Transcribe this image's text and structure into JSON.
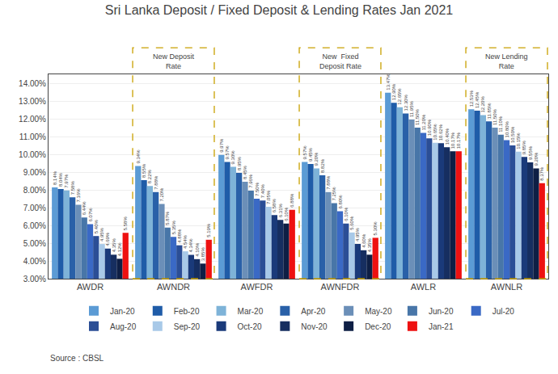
{
  "chart_data": {
    "type": "bar",
    "title": "Sri Lanka Deposit / Fixed Deposit & Lending Rates Jan 2021",
    "source": "Source : CBSL",
    "categories": [
      "AWDR",
      "AWNDR",
      "AWFDR",
      "AWNFDR",
      "AWLR",
      "AWNLR"
    ],
    "series": [
      {
        "name": "Jan-20",
        "color": "#5B9BD5",
        "values": [
          8.14,
          9.34,
          9.97,
          9.57,
          13.47,
          12.53
        ],
        "value_labels": [
          "8.14%",
          "9.34%",
          "9.97%",
          "9.57%",
          "13.47%",
          "12.53%"
        ]
      },
      {
        "name": "Feb-20",
        "color": "#1F5CA8",
        "values": [
          8.04,
          8.55,
          9.57,
          9.45,
          12.9,
          12.45
        ],
        "value_labels": [
          "8.04%",
          "8.55%",
          "9.57%",
          "9.45%",
          "12.90%",
          "12.45%"
        ]
      },
      {
        "name": "Mar-20",
        "color": "#7EB3D8",
        "values": [
          7.97,
          8.22,
          9.3,
          9.2,
          12.65,
          12.2
        ],
        "value_labels": [
          "7.97%",
          "8.22%",
          "9.30%",
          "9.20%",
          "12.65%",
          "12.20%"
        ]
      },
      {
        "name": "Apr-20",
        "color": "#2960A8",
        "values": [
          7.58,
          7.88,
          8.95,
          8.82,
          12.3,
          11.85
        ],
        "value_labels": [
          "7.58%",
          "7.88%",
          "8.95%",
          "8.82%",
          "12.30%",
          "11.85%"
        ]
      },
      {
        "name": "May-20",
        "color": "#6B8FB8",
        "values": [
          7.16,
          7.2,
          8.45,
          7.88,
          11.95,
          11.5
        ],
        "value_labels": [
          "7.16%",
          "7.20%",
          "8.45%",
          "7.88%",
          "11.95%",
          "11.50%"
        ]
      },
      {
        "name": "Jun-20",
        "color": "#4876A8",
        "values": [
          6.44,
          5.87,
          7.96,
          7.25,
          11.5,
          11.1
        ],
        "value_labels": [
          "6.44%",
          "5.87%",
          "7.96%",
          "7.25%",
          "11.50%",
          "11.10%"
        ]
      },
      {
        "name": "Jul-20",
        "color": "#3A69C5",
        "values": [
          6.07,
          5.35,
          7.5,
          6.8,
          11.2,
          10.8
        ],
        "value_labels": [
          "6.07%",
          "5.35%",
          "7.50%",
          "6.80%",
          "11.20%",
          "10.80%"
        ]
      },
      {
        "name": "Aug-20",
        "color": "#2B4E96",
        "values": [
          5.4,
          4.88,
          7.4,
          6.1,
          10.9,
          10.5
        ],
        "value_labels": [
          "5.40%",
          "4.88%",
          "7.40%",
          "6.10%",
          "10.90%",
          "10.50%"
        ]
      },
      {
        "name": "Sep-20",
        "color": "#A8C9E8",
        "values": [
          4.95,
          4.54,
          7.05,
          5.6,
          10.65,
          10.15
        ],
        "value_labels": [
          "4.95%",
          "4.54%",
          "7.05%",
          "5.60%",
          "10.65%",
          "10.15%"
        ]
      },
      {
        "name": "Oct-20",
        "color": "#1A3A7A",
        "values": [
          4.69,
          4.34,
          6.58,
          4.95,
          10.62,
          9.85
        ],
        "value_labels": [
          "4.69%",
          "4.34%",
          "6.58%",
          "4.95%",
          "10.62%",
          "9.85%"
        ]
      },
      {
        "name": "Nov-20",
        "color": "#162E60",
        "values": [
          4.35,
          4.1,
          6.31,
          4.6,
          10.4,
          9.55
        ],
        "value_labels": [
          "4.35%",
          "4.10%",
          "6.31%",
          "4.60%",
          "10.40%",
          "9.55%"
        ]
      },
      {
        "name": "Dec-20",
        "color": "#0E1F45",
        "values": [
          4.12,
          3.85,
          6.1,
          4.35,
          10.17,
          9.2
        ],
        "value_labels": [
          "4.12%",
          "3.85%",
          "6.10%",
          "4.35%",
          "10.17%",
          "9.20%"
        ]
      },
      {
        "name": "Jan-21",
        "color": "#EE1111",
        "values": [
          5.58,
          5.19,
          6.88,
          5.3,
          10.17,
          8.37
        ],
        "value_labels": [
          "5.58%",
          "5.19%",
          "6.88%",
          "5.30%",
          "10.17%",
          "8.37%"
        ]
      }
    ],
    "annotations": [
      {
        "category": "AWNDR",
        "text": "New Deposit\nRate"
      },
      {
        "category": "AWNFDR",
        "text": "New  Fixed\nDeposit Rate"
      },
      {
        "category": "AWNLR",
        "text": "New Lending\nRate"
      }
    ],
    "ylim": [
      3.0,
      14.5
    ],
    "yticks": [
      {
        "value": 3.0,
        "label": "3.00%"
      },
      {
        "value": 4.0,
        "label": "4.00%"
      },
      {
        "value": 5.0,
        "label": "5.00%"
      },
      {
        "value": 6.0,
        "label": "6.00%"
      },
      {
        "value": 7.0,
        "label": "7.00%"
      },
      {
        "value": 8.0,
        "label": "8.00%"
      },
      {
        "value": 9.0,
        "label": "9.00%"
      },
      {
        "value": 10.0,
        "label": "10.00%"
      },
      {
        "value": 11.0,
        "label": "11.00%"
      },
      {
        "value": 12.0,
        "label": "12.00%"
      },
      {
        "value": 13.0,
        "label": "13.00%"
      },
      {
        "value": 14.0,
        "label": "14.00%"
      }
    ],
    "grid": true,
    "legend": "bottom",
    "data_labels": true
  }
}
